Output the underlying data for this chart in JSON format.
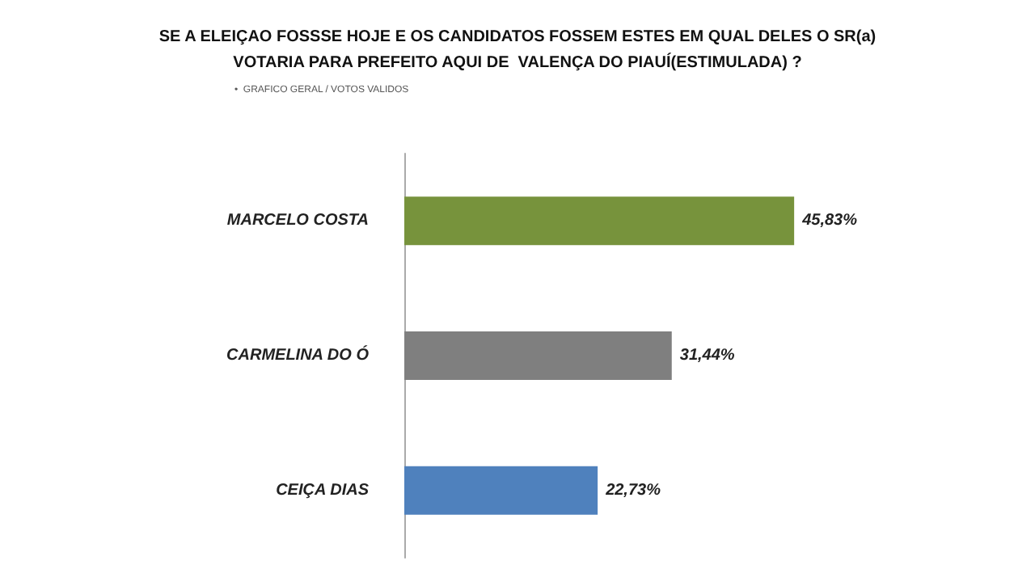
{
  "chart_data": {
    "type": "bar",
    "orientation": "horizontal",
    "title": "SE A ELEIÇAO FOSSSE HOJE E OS CANDIDATOS FOSSEM ESTES EM QUAL DELES O SR(a)\nVOTARIA PARA PREFEITO AQUI DE  VALENÇA DO PIAUÍ(ESTIMULADA) ?",
    "subtitle": "•  GRAFICO GERAL / VOTOS VALIDOS",
    "categories": [
      "MARCELO COSTA",
      "CARMELINA DO Ó",
      "CEIÇA DIAS"
    ],
    "values": [
      45.83,
      31.44,
      22.73
    ],
    "colors": [
      "#77933c",
      "#7f7f7f",
      "#4f81bd"
    ],
    "value_labels": [
      "45,83%",
      "31,44%",
      "22,73%"
    ]
  }
}
